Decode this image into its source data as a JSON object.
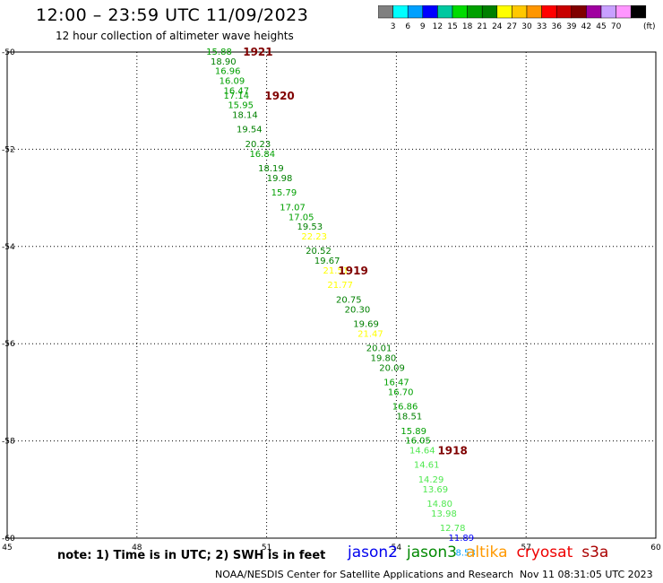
{
  "header": {
    "title": "12:00 – 23:59 UTC 11/09/2023",
    "subtitle": "12 hour collection of altimeter wave heights"
  },
  "colorbar": {
    "unit": "(ft)",
    "ticks": [
      "3",
      "6",
      "9",
      "12",
      "15",
      "18",
      "21",
      "24",
      "27",
      "30",
      "33",
      "36",
      "39",
      "42",
      "45",
      "70"
    ],
    "colors": [
      "#808080",
      "#00ffff",
      "#00a0ff",
      "#0000ff",
      "#00c8a0",
      "#00dc00",
      "#00a000",
      "#008000",
      "#ffff00",
      "#ffc800",
      "#ff9600",
      "#ff0000",
      "#c80000",
      "#800000",
      "#a000a0",
      "#c8a0ff",
      "#ff96ff",
      "#000000"
    ]
  },
  "footer": {
    "note": "note:  1) Time is in UTC;  2) SWH is in feet",
    "satellites": [
      {
        "name": "jason2",
        "color": "#0000ee"
      },
      {
        "name": "jason3",
        "color": "#008800"
      },
      {
        "name": "altika",
        "color": "#ff9900"
      },
      {
        "name": "cryosat",
        "color": "#ee0000"
      },
      {
        "name": "s3a",
        "color": "#aa0000"
      }
    ],
    "credit": "NOAA/NESDIS Center for Satellite Applications and Research",
    "timestamp": "Nov 11 08:31:05 UTC 2023"
  },
  "chart_data": {
    "type": "scatter",
    "xlim": [
      45,
      60
    ],
    "ylim": [
      -60,
      -50
    ],
    "xticks": [
      "45",
      "48",
      "51",
      "54",
      "57",
      "60"
    ],
    "yticks": [
      "-50",
      "-52",
      "-54",
      "-56",
      "-58",
      "-60"
    ],
    "grid": true,
    "points": [
      {
        "x": 49.9,
        "y": -50.0,
        "v": "15.88",
        "color": "#00a000"
      },
      {
        "x": 50.0,
        "y": -50.2,
        "v": "18.90",
        "color": "#008000"
      },
      {
        "x": 50.1,
        "y": -50.4,
        "v": "16.96",
        "color": "#00a000"
      },
      {
        "x": 50.2,
        "y": -50.6,
        "v": "16.09",
        "color": "#00a000"
      },
      {
        "x": 50.3,
        "y": -50.8,
        "v": "16.47",
        "color": "#00a000"
      },
      {
        "x": 50.3,
        "y": -50.9,
        "v": "17.14",
        "color": "#00a000"
      },
      {
        "x": 50.4,
        "y": -51.1,
        "v": "15.95",
        "color": "#00a000"
      },
      {
        "x": 50.5,
        "y": -51.3,
        "v": "18.14",
        "color": "#008000"
      },
      {
        "x": 50.6,
        "y": -51.6,
        "v": "19.54",
        "color": "#008000"
      },
      {
        "x": 50.8,
        "y": -51.9,
        "v": "20.23",
        "color": "#008000"
      },
      {
        "x": 50.9,
        "y": -52.1,
        "v": "16.84",
        "color": "#00a000"
      },
      {
        "x": 51.1,
        "y": -52.4,
        "v": "18.19",
        "color": "#008000"
      },
      {
        "x": 51.3,
        "y": -52.6,
        "v": "19.98",
        "color": "#008000"
      },
      {
        "x": 51.4,
        "y": -52.9,
        "v": "15.79",
        "color": "#00a000"
      },
      {
        "x": 51.6,
        "y": -53.2,
        "v": "17.07",
        "color": "#00a000"
      },
      {
        "x": 51.8,
        "y": -53.4,
        "v": "17.05",
        "color": "#00a000"
      },
      {
        "x": 52.0,
        "y": -53.6,
        "v": "19.53",
        "color": "#008000"
      },
      {
        "x": 52.1,
        "y": -53.8,
        "v": "22.23",
        "color": "#ffff00"
      },
      {
        "x": 52.2,
        "y": -54.1,
        "v": "20.52",
        "color": "#008000"
      },
      {
        "x": 52.4,
        "y": -54.3,
        "v": "19.67",
        "color": "#008000"
      },
      {
        "x": 52.6,
        "y": -54.5,
        "v": "21.51",
        "color": "#ffff00"
      },
      {
        "x": 52.7,
        "y": -54.8,
        "v": "21.77",
        "color": "#ffff00"
      },
      {
        "x": 52.9,
        "y": -55.1,
        "v": "20.75",
        "color": "#008000"
      },
      {
        "x": 53.1,
        "y": -55.3,
        "v": "20.30",
        "color": "#008000"
      },
      {
        "x": 53.3,
        "y": -55.6,
        "v": "19.69",
        "color": "#008000"
      },
      {
        "x": 53.4,
        "y": -55.8,
        "v": "21.47",
        "color": "#ffff00"
      },
      {
        "x": 53.6,
        "y": -56.1,
        "v": "20.01",
        "color": "#008000"
      },
      {
        "x": 53.7,
        "y": -56.3,
        "v": "19.80",
        "color": "#008000"
      },
      {
        "x": 53.9,
        "y": -56.5,
        "v": "20.09",
        "color": "#008000"
      },
      {
        "x": 54.0,
        "y": -56.8,
        "v": "16.47",
        "color": "#00a000"
      },
      {
        "x": 54.1,
        "y": -57.0,
        "v": "16.70",
        "color": "#00a000"
      },
      {
        "x": 54.2,
        "y": -57.3,
        "v": "16.86",
        "color": "#00a000"
      },
      {
        "x": 54.3,
        "y": -57.5,
        "v": "18.51",
        "color": "#008000"
      },
      {
        "x": 54.4,
        "y": -57.8,
        "v": "15.89",
        "color": "#00a000"
      },
      {
        "x": 54.5,
        "y": -58.0,
        "v": "16.05",
        "color": "#00a000"
      },
      {
        "x": 54.6,
        "y": -58.2,
        "v": "14.64",
        "color": "#50e850"
      },
      {
        "x": 54.7,
        "y": -58.5,
        "v": "14.61",
        "color": "#50e850"
      },
      {
        "x": 54.8,
        "y": -58.8,
        "v": "14.29",
        "color": "#50e850"
      },
      {
        "x": 54.9,
        "y": -59.0,
        "v": "13.69",
        "color": "#50e850"
      },
      {
        "x": 55.0,
        "y": -59.3,
        "v": "14.80",
        "color": "#50e850"
      },
      {
        "x": 55.1,
        "y": -59.5,
        "v": "13.98",
        "color": "#50e850"
      },
      {
        "x": 55.3,
        "y": -59.8,
        "v": "12.78",
        "color": "#50e850"
      },
      {
        "x": 55.5,
        "y": -60.0,
        "v": "11.89",
        "color": "#0000ff"
      },
      {
        "x": 55.6,
        "y": -60.3,
        "v": "8.53",
        "color": "#00a0ff"
      }
    ],
    "annotations": [
      {
        "x": 50.8,
        "y": -50.0,
        "text": "1921"
      },
      {
        "x": 51.3,
        "y": -50.9,
        "text": "1920"
      },
      {
        "x": 53.0,
        "y": -54.5,
        "text": "1919"
      },
      {
        "x": 55.3,
        "y": -58.2,
        "text": "1918"
      }
    ]
  }
}
